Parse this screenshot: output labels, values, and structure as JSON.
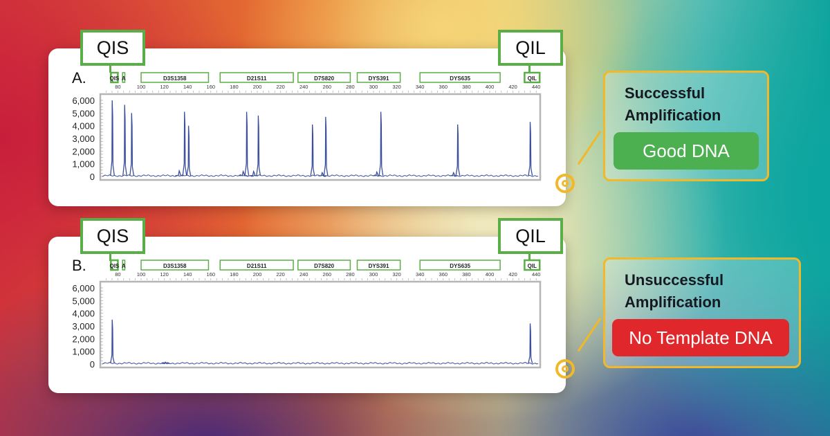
{
  "panels": [
    {
      "letter": "A.",
      "qis_label": "QIS",
      "qil_label": "QIL"
    },
    {
      "letter": "B.",
      "qis_label": "QIS",
      "qil_label": "QIL"
    }
  ],
  "callouts": [
    {
      "title_line1": "Successful",
      "title_line2": "Amplification",
      "button": "Good DNA",
      "color": "#4caf50"
    },
    {
      "title_line1": "Unsuccessful",
      "title_line2": "Amplification",
      "button": "No Template DNA",
      "color": "#e0282c"
    }
  ],
  "colors": {
    "accent_yellow": "#f1b829",
    "locus_green": "#5aae48",
    "trace_blue": "#3b4f9a"
  },
  "chart_data": [
    {
      "type": "line",
      "panel": "A.",
      "xlabel": "",
      "ylabel": "",
      "xlim": [
        70,
        445
      ],
      "ylim": [
        0,
        6000
      ],
      "x_ticks": [
        80,
        100,
        120,
        140,
        160,
        180,
        200,
        220,
        240,
        260,
        280,
        300,
        320,
        340,
        360,
        380,
        400,
        420,
        440
      ],
      "y_ticks": [
        "0",
        "1,000",
        "2,000",
        "3,000",
        "4,000",
        "5,000",
        "6,000"
      ],
      "loci": [
        {
          "name": "QIS",
          "range": [
            74,
            80
          ]
        },
        {
          "name": "A",
          "range": [
            84,
            86
          ]
        },
        {
          "name": "D3S1358",
          "range": [
            100,
            158
          ]
        },
        {
          "name": "D21S11",
          "range": [
            168,
            231
          ]
        },
        {
          "name": "D7S820",
          "range": [
            235,
            280
          ]
        },
        {
          "name": "DYS391",
          "range": [
            286,
            323
          ]
        },
        {
          "name": "DYS635",
          "range": [
            340,
            409
          ]
        },
        {
          "name": "QIL",
          "range": [
            430,
            443
          ]
        }
      ],
      "peaks": [
        {
          "x": 75.3,
          "y": 6000
        },
        {
          "x": 86,
          "y": 5650
        },
        {
          "x": 92,
          "y": 5000
        },
        {
          "x": 133,
          "y": 450
        },
        {
          "x": 137.5,
          "y": 5100
        },
        {
          "x": 141,
          "y": 4000
        },
        {
          "x": 188,
          "y": 400
        },
        {
          "x": 191,
          "y": 5100
        },
        {
          "x": 197,
          "y": 400
        },
        {
          "x": 201,
          "y": 4800
        },
        {
          "x": 247.6,
          "y": 4100
        },
        {
          "x": 256,
          "y": 300
        },
        {
          "x": 259,
          "y": 4700
        },
        {
          "x": 303,
          "y": 350
        },
        {
          "x": 306.5,
          "y": 5100
        },
        {
          "x": 369,
          "y": 300
        },
        {
          "x": 372.6,
          "y": 4100
        },
        {
          "x": 435,
          "y": 4300
        }
      ]
    },
    {
      "type": "line",
      "panel": "B.",
      "xlabel": "",
      "ylabel": "",
      "xlim": [
        70,
        445
      ],
      "ylim": [
        0,
        6000
      ],
      "x_ticks": [
        80,
        100,
        120,
        140,
        160,
        180,
        200,
        220,
        240,
        260,
        280,
        300,
        320,
        340,
        360,
        380,
        400,
        420,
        440
      ],
      "y_ticks": [
        "0",
        "1,000",
        "2,000",
        "3,000",
        "4,000",
        "5,000",
        "6,000"
      ],
      "loci": [
        {
          "name": "QIS",
          "range": [
            74,
            80
          ]
        },
        {
          "name": "A",
          "range": [
            84,
            86
          ]
        },
        {
          "name": "D3S1358",
          "range": [
            100,
            158
          ]
        },
        {
          "name": "D21S11",
          "range": [
            168,
            231
          ]
        },
        {
          "name": "D7S820",
          "range": [
            235,
            280
          ]
        },
        {
          "name": "DYS391",
          "range": [
            286,
            323
          ]
        },
        {
          "name": "DYS635",
          "range": [
            340,
            409
          ]
        },
        {
          "name": "QIL",
          "range": [
            430,
            443
          ]
        }
      ],
      "peaks": [
        {
          "x": 75.3,
          "y": 3500
        },
        {
          "x": 121,
          "y": 150
        },
        {
          "x": 435,
          "y": 3200
        }
      ]
    }
  ]
}
